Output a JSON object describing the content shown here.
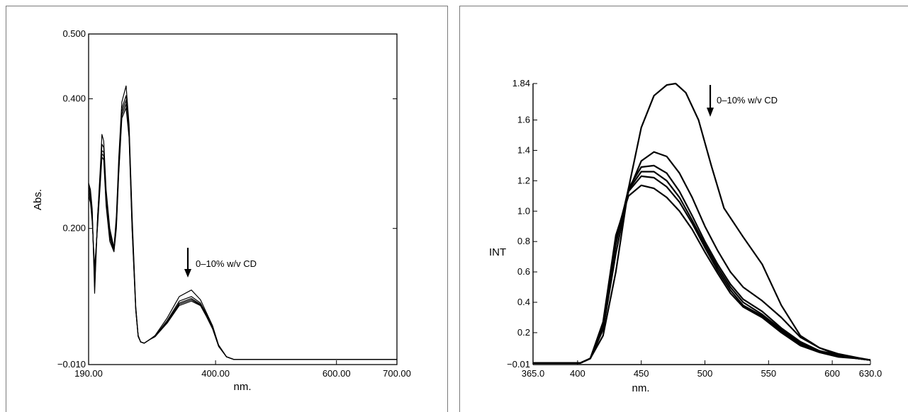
{
  "chart_data": [
    {
      "type": "line",
      "title": "",
      "xlabel": "nm.",
      "ylabel": "Abs.",
      "xlim": [
        190,
        700
      ],
      "ylim": [
        -0.01,
        0.5
      ],
      "x_ticks": [
        {
          "value": 190,
          "label": "190.00"
        },
        {
          "value": 400,
          "label": "400.00"
        },
        {
          "value": 600,
          "label": "600.00"
        },
        {
          "value": 700,
          "label": "700.00"
        }
      ],
      "y_ticks": [
        {
          "value": -0.01,
          "label": "−0.010"
        },
        {
          "value": 0.2,
          "label": "0.200"
        },
        {
          "value": 0.4,
          "label": "0.400"
        },
        {
          "value": 0.5,
          "label": "0.500"
        }
      ],
      "annotation": "0–10% w/v CD",
      "grid": false,
      "legend": "none",
      "series": [
        {
          "x": [
            190,
            193,
            196,
            200,
            205,
            210,
            212,
            215,
            219,
            225,
            232,
            236,
            240,
            245,
            252,
            257,
            262,
            268,
            272,
            276,
            282,
            290,
            300,
            320,
            340,
            360,
            375,
            385,
            395,
            405,
            418,
            430,
            500,
            600,
            700
          ],
          "y": [
            0.27,
            0.26,
            0.23,
            0.1,
            0.22,
            0.305,
            0.345,
            0.335,
            0.26,
            0.2,
            0.17,
            0.22,
            0.31,
            0.395,
            0.42,
            0.36,
            0.22,
            0.08,
            0.035,
            0.025,
            0.023,
            0.028,
            0.035,
            0.062,
            0.095,
            0.105,
            0.09,
            0.07,
            0.05,
            0.02,
            0.002,
            -0.002,
            -0.002,
            -0.002,
            -0.002
          ]
        },
        {
          "x": [
            190,
            193,
            196,
            200,
            205,
            210,
            212,
            215,
            219,
            225,
            232,
            236,
            240,
            245,
            252,
            257,
            262,
            268,
            272,
            276,
            282,
            290,
            300,
            320,
            340,
            360,
            375,
            385,
            395,
            405,
            418,
            430,
            500,
            600,
            700
          ],
          "y": [
            0.265,
            0.255,
            0.225,
            0.11,
            0.22,
            0.295,
            0.33,
            0.325,
            0.25,
            0.195,
            0.17,
            0.215,
            0.3,
            0.385,
            0.405,
            0.355,
            0.21,
            0.078,
            0.035,
            0.025,
            0.023,
            0.028,
            0.034,
            0.058,
            0.088,
            0.095,
            0.085,
            0.068,
            0.048,
            0.02,
            0.002,
            -0.002,
            -0.002,
            -0.002,
            -0.002
          ]
        },
        {
          "x": [
            190,
            193,
            196,
            200,
            205,
            210,
            212,
            215,
            219,
            225,
            232,
            236,
            240,
            245,
            252,
            257,
            262,
            268,
            272,
            276,
            282,
            290,
            300,
            320,
            340,
            360,
            375,
            385,
            395,
            405,
            418,
            430,
            500,
            600,
            700
          ],
          "y": [
            0.26,
            0.25,
            0.22,
            0.12,
            0.215,
            0.29,
            0.32,
            0.318,
            0.245,
            0.19,
            0.168,
            0.21,
            0.295,
            0.38,
            0.398,
            0.35,
            0.205,
            0.076,
            0.034,
            0.025,
            0.023,
            0.028,
            0.034,
            0.056,
            0.085,
            0.092,
            0.083,
            0.066,
            0.047,
            0.019,
            0.002,
            -0.002,
            -0.002,
            -0.002,
            -0.002
          ]
        },
        {
          "x": [
            190,
            193,
            196,
            200,
            205,
            210,
            212,
            215,
            219,
            225,
            232,
            236,
            240,
            245,
            252,
            257,
            262,
            268,
            272,
            276,
            282,
            290,
            300,
            320,
            340,
            360,
            375,
            385,
            395,
            405,
            418,
            430,
            500,
            600,
            700
          ],
          "y": [
            0.255,
            0.245,
            0.215,
            0.13,
            0.21,
            0.285,
            0.315,
            0.312,
            0.24,
            0.185,
            0.166,
            0.205,
            0.29,
            0.375,
            0.392,
            0.345,
            0.2,
            0.075,
            0.034,
            0.025,
            0.023,
            0.028,
            0.033,
            0.055,
            0.083,
            0.09,
            0.082,
            0.065,
            0.046,
            0.019,
            0.002,
            -0.002,
            -0.002,
            -0.002,
            -0.002
          ]
        },
        {
          "x": [
            190,
            193,
            196,
            200,
            205,
            210,
            212,
            215,
            219,
            225,
            232,
            236,
            240,
            245,
            252,
            257,
            262,
            268,
            272,
            276,
            282,
            290,
            300,
            320,
            340,
            360,
            375,
            385,
            395,
            405,
            418,
            430,
            500,
            600,
            700
          ],
          "y": [
            0.25,
            0.24,
            0.21,
            0.14,
            0.205,
            0.28,
            0.31,
            0.306,
            0.235,
            0.18,
            0.164,
            0.2,
            0.285,
            0.37,
            0.386,
            0.34,
            0.196,
            0.074,
            0.033,
            0.025,
            0.023,
            0.028,
            0.033,
            0.054,
            0.081,
            0.088,
            0.081,
            0.064,
            0.045,
            0.018,
            0.002,
            -0.002,
            -0.002,
            -0.002,
            -0.002
          ]
        }
      ]
    },
    {
      "type": "line",
      "title": "",
      "xlabel": "nm.",
      "ylabel": "INT",
      "xlim": [
        365,
        630
      ],
      "ylim": [
        -0.01,
        1.84
      ],
      "x_ticks": [
        {
          "value": 365,
          "label": "365.0"
        },
        {
          "value": 400,
          "label": "400"
        },
        {
          "value": 450,
          "label": "450"
        },
        {
          "value": 500,
          "label": "500"
        },
        {
          "value": 550,
          "label": "550"
        },
        {
          "value": 600,
          "label": "600"
        },
        {
          "value": 630,
          "label": "630.0"
        }
      ],
      "y_ticks": [
        {
          "value": -0.01,
          "label": "−0.01"
        },
        {
          "value": 0.2,
          "label": "0.2"
        },
        {
          "value": 0.4,
          "label": "0.4"
        },
        {
          "value": 0.6,
          "label": "0.6"
        },
        {
          "value": 0.8,
          "label": "0.8"
        },
        {
          "value": 1.0,
          "label": "1.0"
        },
        {
          "value": 1.2,
          "label": "1.2"
        },
        {
          "value": 1.4,
          "label": "1.4"
        },
        {
          "value": 1.6,
          "label": "1.6"
        },
        {
          "value": 1.84,
          "label": "1.84"
        }
      ],
      "annotation": "0–10% w/v CD",
      "grid": false,
      "legend": "none",
      "series": [
        {
          "x": [
            365,
            395,
            402,
            410,
            420,
            430,
            440,
            450,
            460,
            470,
            477,
            485,
            495,
            505,
            515,
            530,
            545,
            560,
            575,
            590,
            605,
            620,
            630
          ],
          "y": [
            0,
            0,
            0.0,
            0.03,
            0.18,
            0.6,
            1.15,
            1.55,
            1.76,
            1.83,
            1.84,
            1.78,
            1.6,
            1.3,
            1.02,
            0.83,
            0.65,
            0.38,
            0.18,
            0.1,
            0.05,
            0.03,
            0.02
          ]
        },
        {
          "x": [
            365,
            395,
            402,
            410,
            420,
            430,
            440,
            450,
            460,
            470,
            480,
            490,
            500,
            510,
            520,
            530,
            545,
            560,
            575,
            590,
            605,
            620,
            630
          ],
          "y": [
            0,
            0,
            0.0,
            0.03,
            0.22,
            0.72,
            1.13,
            1.33,
            1.39,
            1.36,
            1.25,
            1.09,
            0.9,
            0.74,
            0.6,
            0.5,
            0.41,
            0.3,
            0.17,
            0.1,
            0.06,
            0.035,
            0.02
          ]
        },
        {
          "x": [
            365,
            395,
            402,
            410,
            420,
            430,
            440,
            450,
            460,
            470,
            480,
            490,
            500,
            510,
            520,
            530,
            545,
            560,
            575,
            590,
            605,
            620,
            630
          ],
          "y": [
            0,
            0,
            0.0,
            0.03,
            0.24,
            0.78,
            1.15,
            1.29,
            1.3,
            1.25,
            1.13,
            0.97,
            0.8,
            0.65,
            0.52,
            0.42,
            0.34,
            0.23,
            0.14,
            0.08,
            0.05,
            0.03,
            0.02
          ]
        },
        {
          "x": [
            365,
            395,
            402,
            410,
            420,
            430,
            440,
            450,
            460,
            470,
            480,
            490,
            500,
            510,
            520,
            530,
            545,
            560,
            575,
            590,
            605,
            620,
            630
          ],
          "y": [
            0,
            0,
            0.0,
            0.03,
            0.25,
            0.8,
            1.14,
            1.26,
            1.26,
            1.2,
            1.09,
            0.94,
            0.78,
            0.63,
            0.5,
            0.4,
            0.32,
            0.22,
            0.13,
            0.08,
            0.05,
            0.03,
            0.02
          ]
        },
        {
          "x": [
            365,
            395,
            402,
            410,
            420,
            430,
            440,
            450,
            460,
            470,
            480,
            490,
            500,
            510,
            520,
            530,
            545,
            560,
            575,
            590,
            605,
            620,
            630
          ],
          "y": [
            0,
            0,
            0.0,
            0.03,
            0.26,
            0.82,
            1.13,
            1.23,
            1.22,
            1.16,
            1.06,
            0.92,
            0.76,
            0.61,
            0.48,
            0.38,
            0.31,
            0.21,
            0.12,
            0.075,
            0.045,
            0.03,
            0.02
          ]
        },
        {
          "x": [
            365,
            395,
            402,
            410,
            420,
            430,
            440,
            450,
            460,
            470,
            480,
            490,
            500,
            510,
            520,
            530,
            545,
            560,
            575,
            590,
            605,
            620,
            630
          ],
          "y": [
            0,
            0,
            0.0,
            0.03,
            0.27,
            0.84,
            1.1,
            1.17,
            1.15,
            1.09,
            1.0,
            0.88,
            0.73,
            0.59,
            0.46,
            0.37,
            0.3,
            0.2,
            0.115,
            0.07,
            0.04,
            0.03,
            0.02
          ]
        }
      ]
    }
  ]
}
